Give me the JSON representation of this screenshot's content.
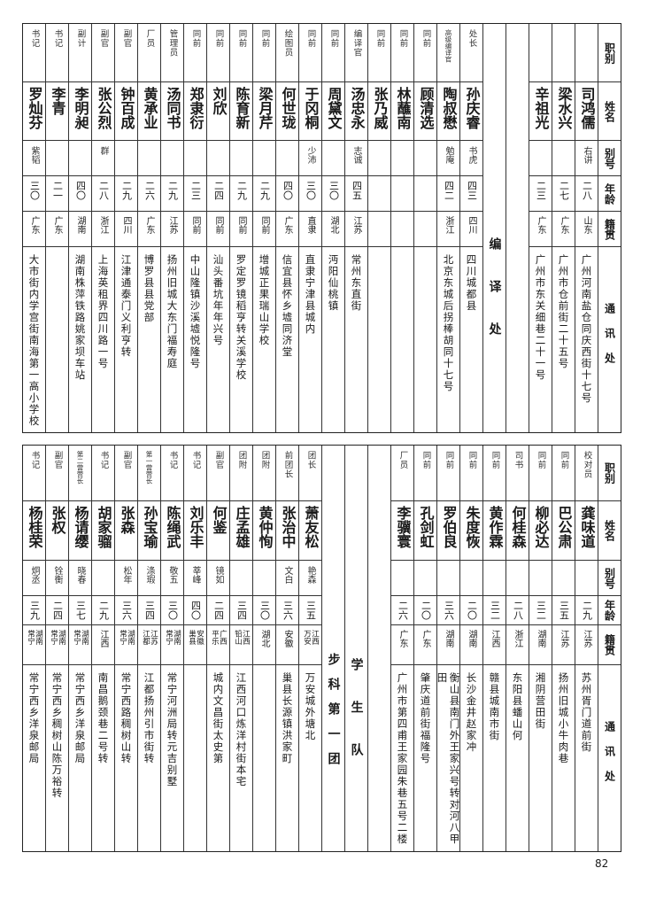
{
  "headers": {
    "role": "职别",
    "name": "姓名",
    "alias": "别号",
    "age": "年龄",
    "origin": "籍贯",
    "address": "通讯处"
  },
  "top": {
    "columns": [
      {
        "role": "",
        "name": "司鸿儒",
        "alias": "右讲",
        "age": "二八",
        "origin": "山东",
        "address": "广州河南盐仓同庆西街十七号"
      },
      {
        "role": "",
        "name": "梁水兴",
        "alias": "",
        "age": "二七",
        "origin": "广东",
        "address": "广州市仓前街二十五号"
      },
      {
        "role": "",
        "name": "辛祖光",
        "alias": "",
        "age": "二三",
        "origin": "广东",
        "address": "广州市东关细巷二十一号"
      },
      {
        "blank": true
      },
      {
        "section": "编译处"
      },
      {
        "role": "处长",
        "name": "孙庆睿",
        "alias": "书虎",
        "age": "四三",
        "origin": "四川",
        "address": "四川城都县"
      },
      {
        "role": "高级编译官",
        "name": "陶叔懋",
        "alias": "勉庵",
        "age": "四二",
        "origin": "浙江",
        "address": "北京东城后拐棒胡同十七号"
      },
      {
        "role": "同前",
        "name": "顾清选",
        "alias": "",
        "age": "",
        "origin": "",
        "address": ""
      },
      {
        "role": "同前",
        "name": "林蘸南",
        "alias": "",
        "age": "",
        "origin": "",
        "address": ""
      },
      {
        "role": "同前",
        "name": "张乃威",
        "alias": "",
        "age": "",
        "origin": "",
        "address": ""
      },
      {
        "role": "编译官",
        "name": "汤忠永",
        "alias": "志诚",
        "age": "四五",
        "origin": "江苏",
        "address": "常州东直街"
      },
      {
        "role": "同前",
        "name": "周黛文",
        "alias": "",
        "age": "三〇",
        "origin": "湖北",
        "address": "沔阳仙桃镇"
      },
      {
        "role": "同前",
        "name": "于冈桐",
        "alias": "少沛",
        "age": "三〇",
        "origin": "直隶",
        "address": "直隶宁津县城内"
      },
      {
        "role": "绘图员",
        "name": "何世珑",
        "alias": "",
        "age": "四〇",
        "origin": "广东",
        "address": "信宜县怀乡墟同济堂"
      },
      {
        "role": "同前",
        "name": "梁月芹",
        "alias": "",
        "age": "二九",
        "origin": "同前",
        "address": "增城正果瑞山学校"
      },
      {
        "role": "同前",
        "name": "陈育新",
        "alias": "",
        "age": "二九",
        "origin": "同前",
        "address": "罗定罗镜稻亨转关溪学校"
      },
      {
        "role": "同前",
        "name": "刘欣",
        "alias": "",
        "age": "二四",
        "origin": "同前",
        "address": "汕头番坑年年兴号"
      },
      {
        "role": "同前",
        "name": "郑隶衍",
        "alias": "",
        "age": "二三",
        "origin": "同前",
        "address": "中山隆镇沙溪墟悦隆号"
      },
      {
        "role": "管理员",
        "name": "汤同书",
        "alias": "",
        "age": "二九",
        "origin": "江苏",
        "address": "扬州旧城大东门福寿庭"
      },
      {
        "role": "厂员",
        "name": "黄承业",
        "alias": "",
        "age": "二六",
        "origin": "广东",
        "address": "博罗县县党部"
      },
      {
        "role": "副官",
        "name": "钟百成",
        "alias": "",
        "age": "二九",
        "origin": "四川",
        "address": "江津通泰门义利亨转"
      },
      {
        "role": "副官",
        "name": "张公烈",
        "alias": "群",
        "age": "二八",
        "origin": "浙江",
        "address": "上海英租界四川路一号"
      },
      {
        "role": "副计",
        "name": "李明昶",
        "alias": "",
        "age": "四〇",
        "origin": "湖南",
        "address": "湖南株萍铁路姚家坝车站"
      },
      {
        "role": "书记",
        "name": "李青",
        "alias": "",
        "age": "二一",
        "origin": "广东",
        "address": ""
      },
      {
        "role": "书记",
        "name": "罗灿芬",
        "alias": "紫韬",
        "age": "三〇",
        "origin": "广东",
        "address": "大市街内学宫街南海第一高小学校"
      }
    ]
  },
  "bottom": {
    "columns": [
      {
        "role": "校对员",
        "name": "龚味道",
        "alias": "",
        "age": "二九",
        "origin": "江苏",
        "address": "苏州胥门道前街"
      },
      {
        "role": "同前",
        "name": "巴公肃",
        "alias": "",
        "age": "三五",
        "origin": "江苏",
        "address": "扬州旧城小牛肉巷"
      },
      {
        "role": "同前",
        "name": "柳必达",
        "alias": "",
        "age": "三二",
        "origin": "湖南",
        "address": "湘阴营田街"
      },
      {
        "role": "司书",
        "name": "何桂森",
        "alias": "",
        "age": "二八",
        "origin": "浙江",
        "address": "东阳县蟠山何"
      },
      {
        "role": "同前",
        "name": "黄作霖",
        "alias": "",
        "age": "三二",
        "origin": "江西",
        "address": "赣县城南市街"
      },
      {
        "role": "同前",
        "name": "朱度恢",
        "alias": "",
        "age": "二〇",
        "origin": "湖南",
        "address": "长沙金井赵家冲"
      },
      {
        "role": "同前",
        "name": "罗伯良",
        "alias": "",
        "age": "三六",
        "origin": "湖南",
        "address": "衡山县南门外王家兴号转对河八甲田"
      },
      {
        "role": "同前",
        "name": "孔剑虹",
        "alias": "",
        "age": "二〇",
        "origin": "广东",
        "address": "肇庆道前街福隆号"
      },
      {
        "role": "厂员",
        "name": "李骥寰",
        "alias": "",
        "age": "二六",
        "origin": "广东",
        "address": "广州市第四甫王家园朱巷五号二楼"
      },
      {
        "blank": true
      },
      {
        "section": "学生队"
      },
      {
        "section": "步科第一团"
      },
      {
        "role": "团长",
        "name": "萧友松",
        "alias": "艳森",
        "age": "三五",
        "origin": "江西万安",
        "address": "万安城外塘北"
      },
      {
        "role": "前团长",
        "name": "张治中",
        "alias": "文白",
        "age": "三六",
        "origin": "安徽",
        "address": "巢县长源镇洪家町"
      },
      {
        "role": "团附",
        "name": "黄仲恂",
        "alias": "",
        "age": "三〇",
        "origin": "湖北",
        "address": ""
      },
      {
        "role": "团附",
        "name": "庄孟雄",
        "alias": "",
        "age": "三四",
        "origin": "江西铅山",
        "address": "江西河口炼洋村街本宅"
      },
      {
        "role": "副官",
        "name": "何鉴",
        "alias": "镜如",
        "age": "二四",
        "origin": "广西平乐",
        "address": "城内文昌街太史第"
      },
      {
        "role": "书记",
        "name": "刘乐丰",
        "alias": "莘峰",
        "age": "四〇",
        "origin": "安徽巢县",
        "address": ""
      },
      {
        "role": "书记",
        "name": "陈绳武",
        "alias": "敬五",
        "age": "三〇",
        "origin": "湖南常宁",
        "address": "常宁河洲局转元吉别墅"
      },
      {
        "role": "第一营营长",
        "name": "孙宝瑜",
        "alias": "涤瑕",
        "age": "三四",
        "origin": "江苏江都",
        "address": "江都扬州引市街转"
      },
      {
        "role": "副官",
        "name": "张森",
        "alias": "松年",
        "age": "三六",
        "origin": "湖南常宁",
        "address": "常宁西路稠树山转"
      },
      {
        "role": "书记",
        "name": "胡家骝",
        "alias": "",
        "age": "二九",
        "origin": "江西",
        "address": "南昌鹅颈巷二号转"
      },
      {
        "role": "第二营营长",
        "name": "杨请缨",
        "alias": "晓春",
        "age": "三七",
        "origin": "湖南常宁",
        "address": "常宁西乡洋泉邮局"
      },
      {
        "role": "副官",
        "name": "张权",
        "alias": "铨衡",
        "age": "二四",
        "origin": "湖南常宁",
        "address": "常宁西乡稠树山陈万裕转"
      },
      {
        "role": "书记",
        "name": "杨桂荣",
        "alias": "炯丞",
        "age": "三九",
        "origin": "湖南常宁",
        "address": "常宁西乡洋泉邮局"
      }
    ]
  },
  "page_number": "82"
}
